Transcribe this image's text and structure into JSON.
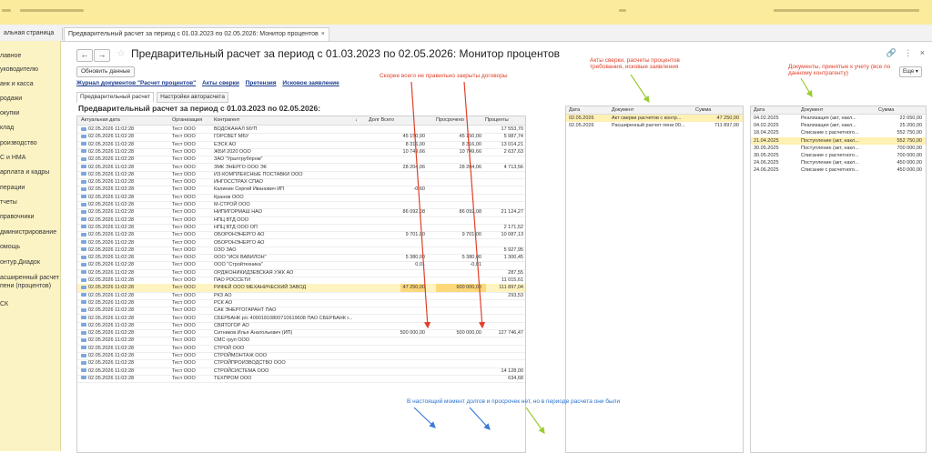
{
  "tabs": {
    "home": "альная страница",
    "active": "Предварительный расчет за период с 01.03.2023 по 02.05.2026: Монитор процентов",
    "close": "×"
  },
  "sidebar": [
    "лавное",
    "уководителю",
    "анк и касса",
    "родажи",
    "окупки",
    "клад",
    "роизводство",
    "С и НМА",
    "арплата и кадры",
    "перации",
    "тчеты",
    "правочники",
    "дминистрирование",
    "омощь",
    "онтур.Диадок",
    "асширенный расчет",
    "пени (процентов)",
    "СК"
  ],
  "header": {
    "back": "←",
    "forward": "→",
    "star": "☆",
    "title": "Предварительный расчет за период с 01.03.2023 по 02.05.2026: Монитор процентов",
    "link_icon": "🔗",
    "menu_icon": "⋮",
    "close_icon": "×"
  },
  "toolbar": {
    "refresh": "Обновить данные",
    "more": "Еще ▾"
  },
  "links": [
    "Журнал документов \"Расчет процентов\"",
    "Акты сверки",
    "Претензия",
    "Исковое заявление"
  ],
  "subtabs": [
    "Предварительный расчет",
    "Настройки авторасчета"
  ],
  "annotations": {
    "a1": "Скорее всего не правильно закрыты договоры",
    "a2_l1": "Акты сверки, расчеты процентов",
    "a2_l2": "требования, исковые заявления",
    "a3_l1": "Документы, принятые к учету (все по",
    "a3_l2": "данному контрагенту)",
    "a4": "В настоящий момент долгов и просрочек нет, но в периоде расчета они были"
  },
  "section_title": "Предварительный расчет за период с 01.03.2023 по 02.05.2026:",
  "grid": {
    "headers": [
      "Актуальная дата",
      "Организация",
      "Контрагент",
      "↓",
      "Долг Всего",
      "Просрочено",
      "Проценты"
    ],
    "rows": [
      [
        "02.05.2026 11:02:28",
        "Тест ООО",
        "ВОДОКАНАЛ МУП",
        "",
        "",
        "17 553,70"
      ],
      [
        "02.05.2026 11:02:28",
        "Тест ООО",
        "ГОРСВЕТ МБУ",
        "45 150,00",
        "45 150,00",
        "5 987,74"
      ],
      [
        "02.05.2026 11:02:28",
        "Тест ООО",
        "ЕЭСК АО",
        "8 316,00",
        "8 316,00",
        "13 014,21"
      ],
      [
        "02.05.2026 11:02:28",
        "Тест ООО",
        "ЖБИ 2020 ООО",
        "10 749,66",
        "10 749,66",
        "2 637,63"
      ],
      [
        "02.05.2026 11:02:28",
        "Тест ООО",
        "ЗАО \"Уралтрубпром\"",
        "",
        "",
        ""
      ],
      [
        "02.05.2026 11:02:28",
        "Тест ООО",
        "ЗМК ЭНЕРГО ООО ЭК",
        "28 204,06",
        "28 204,06",
        "4 713,56"
      ],
      [
        "02.05.2026 11:02:28",
        "Тест ООО",
        "ИЗ-КОМПЛЕКСНЫЕ ПОСТАВКИ ООО",
        "",
        "",
        ""
      ],
      [
        "02.05.2026 11:02:28",
        "Тест ООО",
        "ИНГОССТРАХ СПАО",
        "",
        "",
        ""
      ],
      [
        "02.05.2026 11:02:28",
        "Тест ООО",
        "Калинин Сергей Иванович ИП",
        "-0,60",
        "",
        ""
      ],
      [
        "02.05.2026 11:02:28",
        "Тест ООО",
        "Кранов ООО",
        "",
        "",
        ""
      ],
      [
        "02.05.2026 11:02:28",
        "Тест ООО",
        "М-СТРОЙ ООО",
        "",
        "",
        ""
      ],
      [
        "02.05.2026 11:02:28",
        "Тест ООО",
        "НИПИГОРМАШ НАО",
        "86 092,08",
        "86 092,08",
        "21 124,27"
      ],
      [
        "02.05.2026 11:02:28",
        "Тест ООО",
        "НПЦ ВТД ООО",
        "",
        "",
        ""
      ],
      [
        "02.05.2026 11:02:28",
        "Тест ООО",
        "НПЦ ВТД ООО ОП",
        "",
        "",
        "2 171,52"
      ],
      [
        "02.05.2026 11:02:28",
        "Тест ООО",
        "ОБОРОНЭНЕРГО АО",
        "9 701,00",
        "9 701,00",
        "10 087,13"
      ],
      [
        "02.05.2026 11:02:28",
        "Тест ООО",
        "ОБОРОНЭНЕРГО АО",
        "",
        "",
        ""
      ],
      [
        "02.05.2026 11:02:28",
        "Тест ООО",
        "ОЗО ЗАО",
        "",
        "",
        "5 927,95"
      ],
      [
        "02.05.2026 11:02:28",
        "Тест ООО",
        "ООО \"ИСК ВАВИЛОН\"",
        "5 380,00",
        "5 380,00",
        "1 300,45"
      ],
      [
        "02.05.2026 11:02:28",
        "Тест ООО",
        "ООО \"Стройтехника\"",
        "0,01",
        "-0,01",
        ""
      ],
      [
        "02.05.2026 11:02:28",
        "Тест ООО",
        "ОРДЖОНИКИДЗЕВСКАЯ УЖК АО",
        "",
        "",
        "287,55"
      ],
      [
        "02.05.2026 11:02:28",
        "Тест ООО",
        "ПАО РОССЕТИ",
        "",
        "",
        "11 015,61"
      ],
      [
        "02.05.2026 11:02:28",
        "Тест ООО",
        "РИФЕЙ ООО МЕХАНИЧЕСКИЙ ЗАВОД",
        "47 250,00",
        "600 000,00",
        "111 897,04"
      ],
      [
        "02.05.2026 11:02:28",
        "Тест ООО",
        "РКЗ АО",
        "",
        "",
        "293,53"
      ],
      [
        "02.05.2026 11:02:28",
        "Тест ООО",
        "РСК АО",
        "",
        "",
        ""
      ],
      [
        "02.05.2026 11:02:28",
        "Тест ООО",
        "САК ЭНЕРГОГАРАНТ ПАО",
        "",
        "",
        ""
      ],
      [
        "02.05.2026 11:02:28",
        "Тест ООО",
        "СБЕРБАНК р/с 40901810800710619608 ПАО СБЕРБАНК г...",
        "",
        "",
        ""
      ],
      [
        "02.05.2026 11:02:28",
        "Тест ООО",
        "СВЯТОГОР АО",
        "",
        "",
        ""
      ],
      [
        "02.05.2026 11:02:28",
        "Тест ООО",
        "Ситников Илья Анатольевич (ИП)",
        "500 000,00",
        "500 000,00",
        "127 746,47"
      ],
      [
        "02.05.2026 11:02:28",
        "Тест ООО",
        "СМС груп ООО",
        "",
        "",
        ""
      ],
      [
        "02.05.2026 11:02:28",
        "Тест ООО",
        "СТРОЙ ООО",
        "",
        "",
        ""
      ],
      [
        "02.05.2026 11:02:28",
        "Тест ООО",
        "СТРОЙМОНТАЖ ООО",
        "",
        "",
        ""
      ],
      [
        "02.05.2026 11:02:28",
        "Тест ООО",
        "СТРОЙПРОИЗВОДСТВО ООО",
        "",
        "",
        ""
      ],
      [
        "02.05.2026 11:02:28",
        "Тест ООО",
        "СТРОЙСИСТЕМА ООО",
        "",
        "",
        "14 128,00"
      ],
      [
        "02.05.2026 11:02:28",
        "Тест ООО",
        "ТЕХПРОМ ООО",
        "",
        "",
        "634,68"
      ]
    ]
  },
  "mid": {
    "headers": [
      "Дата",
      "Документ",
      "Сумма"
    ],
    "rows": [
      [
        "02.05.2026",
        "Акт сверки расчетов с контр...",
        "47 250,00"
      ],
      [
        "02.05.2026",
        "Расширенный расчет пени 00...",
        "711 897,00"
      ]
    ]
  },
  "right": {
    "headers": [
      "Дата",
      "Документ",
      "Сумма"
    ],
    "rows": [
      [
        "04.02.2025",
        "Реализация (акт, накл...",
        "22 050,00"
      ],
      [
        "04.02.2025",
        "Реализация (акт, накл...",
        "25 200,00"
      ],
      [
        "18.04.2025",
        "Списание с расчетного...",
        "552 750,00"
      ],
      [
        "21.04.2025",
        "Поступление (акт, накл...",
        "552 750,00"
      ],
      [
        "30.05.2025",
        "Поступление (акт, накл...",
        "700 000,00"
      ],
      [
        "30.05.2025",
        "Списание с расчетного...",
        "700 000,00"
      ],
      [
        "24.06.2025",
        "Поступление (акт, накл...",
        "450 000,00"
      ],
      [
        "24.06.2025",
        "Списание с расчетного...",
        "450 000,00"
      ]
    ]
  }
}
